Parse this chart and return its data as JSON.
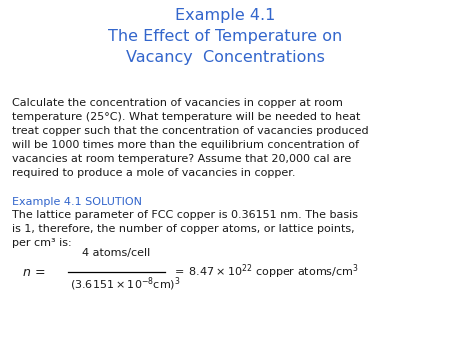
{
  "title_line1": "Example 4.1",
  "title_line2": "The Effect of Temperature on",
  "title_line3": "Vacancy  Concentrations",
  "title_color": "#3366CC",
  "body_para1": "Calculate the concentration of vacancies in copper at room\ntemperature (25°C). What temperature will be needed to heat\ntreat copper such that the concentration of vacancies produced\nwill be 1000 times more than the equilibrium concentration of\nvacancies at room temperature? Assume that 20,000 cal are\nrequired to produce a mole of vacancies in copper.",
  "solution_label": "Example 4.1 SOLUTION",
  "solution_color": "#3366CC",
  "body_para2": "The lattice parameter of FCC copper is 0.36151 nm. The basis\nis 1, therefore, the number of copper atoms, or lattice points,\nper cm³ is:",
  "body_color": "#1a1a1a",
  "background_color": "#ffffff",
  "title_fontsize": 11.5,
  "body_fontsize": 8.0,
  "solution_fontsize": 8.0
}
